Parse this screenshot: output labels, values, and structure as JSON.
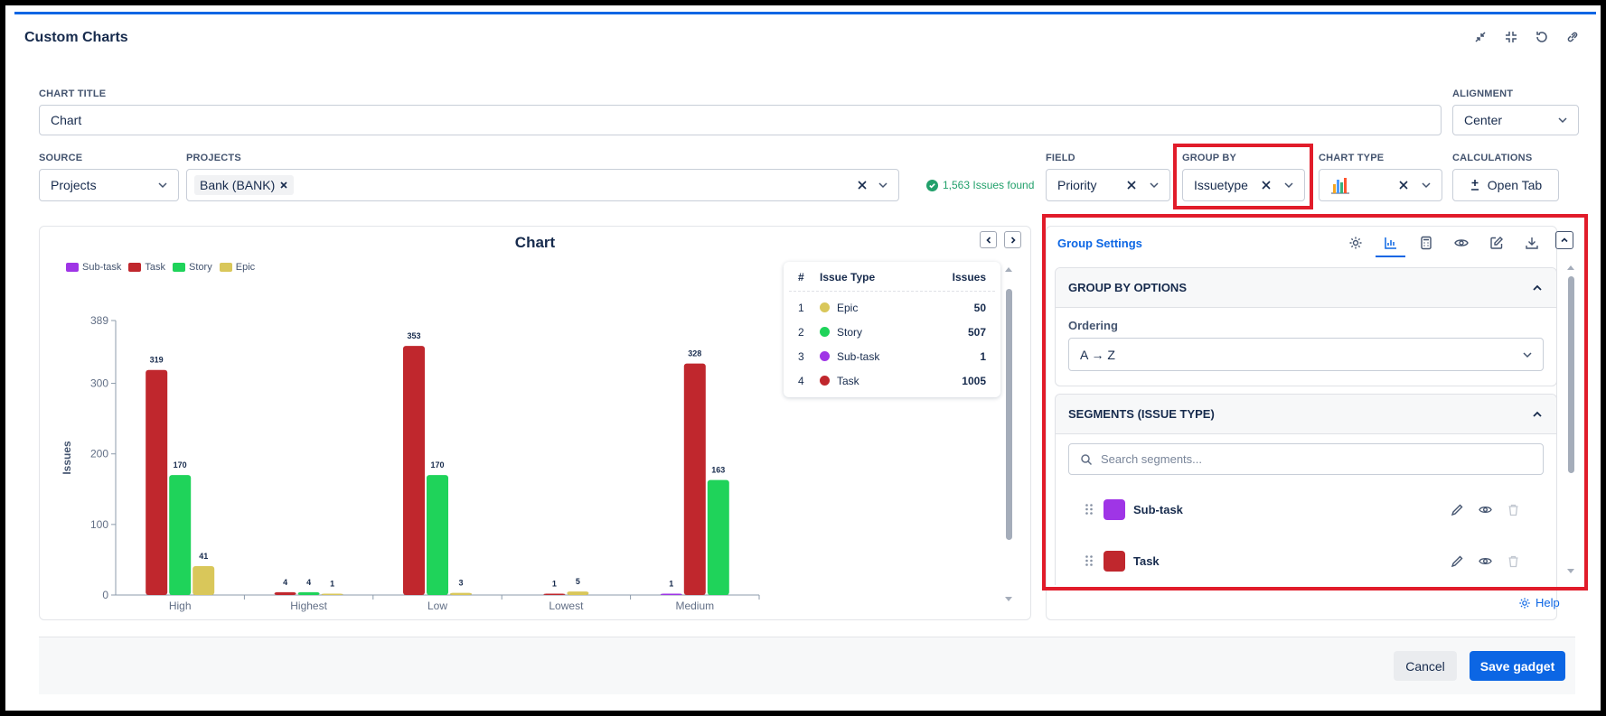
{
  "gadget": {
    "title": "Custom Charts"
  },
  "form": {
    "chart_title_label": "CHART TITLE",
    "chart_title_value": "Chart",
    "alignment_label": "ALIGNMENT",
    "alignment_value": "Center",
    "source_label": "SOURCE",
    "source_value": "Projects",
    "projects_label": "PROJECTS",
    "project_tag": "Bank (BANK)",
    "issues_found": "1,563 Issues found",
    "field_label": "FIELD",
    "field_value": "Priority",
    "group_by_label": "GROUP BY",
    "group_by_value": "Issuetype",
    "chart_type_label": "CHART TYPE",
    "calculations_label": "CALCULATIONS",
    "calculations_button": "Open Tab"
  },
  "chart": {
    "title": "Chart",
    "legend": [
      {
        "name": "Sub-task",
        "color": "#9f35e6"
      },
      {
        "name": "Task",
        "color": "#c0272d"
      },
      {
        "name": "Story",
        "color": "#1fd35a"
      },
      {
        "name": "Epic",
        "color": "#d9c75a"
      }
    ]
  },
  "chart_data": {
    "type": "bar",
    "categories": [
      "High",
      "Highest",
      "Low",
      "Lowest",
      "Medium"
    ],
    "series": [
      {
        "name": "Sub-task",
        "color": "#9f35e6",
        "values": [
          null,
          null,
          null,
          null,
          1
        ]
      },
      {
        "name": "Task",
        "color": "#c0272d",
        "values": [
          319,
          4,
          353,
          1,
          328
        ]
      },
      {
        "name": "Story",
        "color": "#1fd35a",
        "values": [
          170,
          4,
          170,
          null,
          163
        ]
      },
      {
        "name": "Epic",
        "color": "#d9c75a",
        "values": [
          41,
          1,
          3,
          5,
          null
        ]
      }
    ],
    "ylabel": "Issues",
    "yticks": [
      "0",
      "100",
      "200",
      "300",
      "389"
    ],
    "ylim": [
      0,
      389
    ],
    "grid": false,
    "legend_position": "top-left"
  },
  "summary": {
    "headers": [
      "#",
      "Issue Type",
      "Issues"
    ],
    "rows": [
      {
        "num": "1",
        "type": "Epic",
        "issues": "50",
        "color": "#d9c75a"
      },
      {
        "num": "2",
        "type": "Story",
        "issues": "507",
        "color": "#1fd35a"
      },
      {
        "num": "3",
        "type": "Sub-task",
        "issues": "1",
        "color": "#9f35e6"
      },
      {
        "num": "4",
        "type": "Task",
        "issues": "1005",
        "color": "#c0272d"
      }
    ]
  },
  "settings": {
    "title": "Group Settings",
    "group_by_options_title": "GROUP BY OPTIONS",
    "ordering_label": "Ordering",
    "ordering_value": "A → Z",
    "segments_title": "SEGMENTS (ISSUE TYPE)",
    "search_placeholder": "Search segments...",
    "segments": [
      {
        "name": "Sub-task",
        "color": "#9f35e6"
      },
      {
        "name": "Task",
        "color": "#c0272d"
      }
    ],
    "help_label": "Help"
  },
  "footer": {
    "cancel_label": "Cancel",
    "save_label": "Save gadget"
  }
}
